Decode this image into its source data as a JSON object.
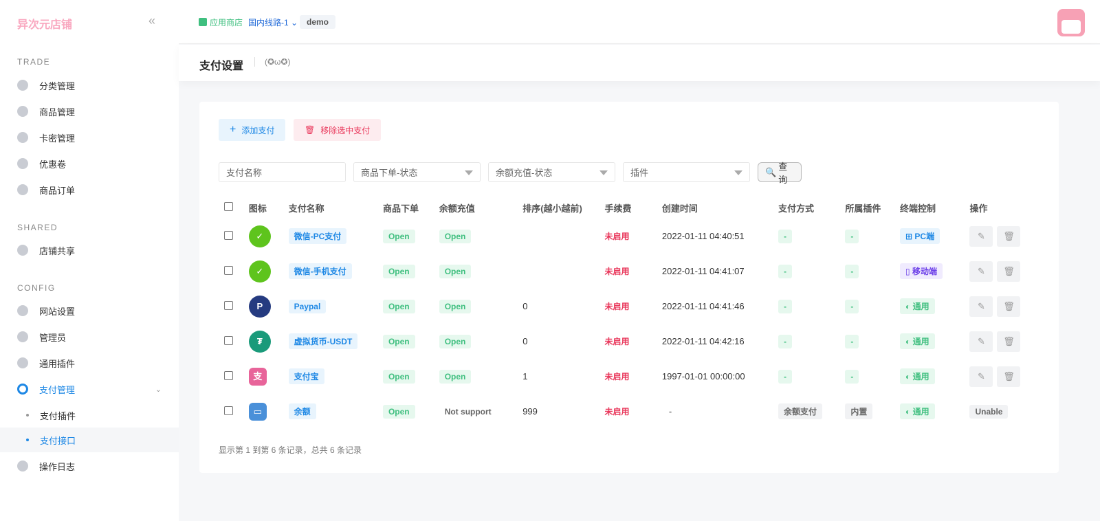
{
  "sidebar": {
    "logo": "异次元店铺",
    "sections": {
      "trade": "TRADE",
      "shared": "SHARED",
      "config": "CONFIG"
    },
    "items": [
      "分类管理",
      "商品管理",
      "卡密管理",
      "优惠卷",
      "商品订单",
      "店铺共享",
      "网站设置",
      "管理员",
      "通用插件",
      "支付管理",
      "支付插件",
      "支付接口",
      "操作日志"
    ]
  },
  "topbar": {
    "store": "应用商店",
    "line": "国内线路-1",
    "user": "demo"
  },
  "page": {
    "title": "支付设置",
    "subtitle": "(✪ω✪)"
  },
  "toolbar": {
    "add": "添加支付",
    "remove": "移除选中支付"
  },
  "filters": {
    "name": "支付名称",
    "order_status": "商品下单-状态",
    "recharge_status": "余额充值-状态",
    "plugin": "插件",
    "search": "查询"
  },
  "table": {
    "headers": [
      "图标",
      "支付名称",
      "商品下单",
      "余额充值",
      "排序(越小越前)",
      "手续费",
      "创建时间",
      "支付方式",
      "所属插件",
      "终端控制",
      "操作"
    ],
    "rows": [
      {
        "icon": "wechat-icon",
        "color": "#5ec41d",
        "name": "微信-PC支付",
        "order": "Open",
        "recharge": "Open",
        "sort": "",
        "fee": "未启用",
        "created": "2022-01-11 04:40:51",
        "method": "-",
        "plugin": "-",
        "terminal": "PC端",
        "terminal_type": "pc"
      },
      {
        "icon": "wechat-icon",
        "color": "#5ec41d",
        "name": "微信-手机支付",
        "order": "Open",
        "recharge": "Open",
        "sort": "",
        "fee": "未启用",
        "created": "2022-01-11 04:41:07",
        "method": "-",
        "plugin": "-",
        "terminal": "移动端",
        "terminal_type": "mobile"
      },
      {
        "icon": "paypal-icon",
        "color": "#253b80",
        "name": "Paypal",
        "order": "Open",
        "recharge": "Open",
        "sort": "0",
        "fee": "未启用",
        "created": "2022-01-11 04:41:46",
        "method": "-",
        "plugin": "-",
        "terminal": "通用",
        "terminal_type": "all"
      },
      {
        "icon": "tether-icon",
        "color": "#1a9a7a",
        "name": "虚拟货币-USDT",
        "order": "Open",
        "recharge": "Open",
        "sort": "0",
        "fee": "未启用",
        "created": "2022-01-11 04:42:16",
        "method": "-",
        "plugin": "-",
        "terminal": "通用",
        "terminal_type": "all"
      },
      {
        "icon": "alipay-icon",
        "color": "#e8649a",
        "name": "支付宝",
        "order": "Open",
        "recharge": "Open",
        "sort": "1",
        "fee": "未启用",
        "created": "1997-01-01 00:00:00",
        "method": "-",
        "plugin": "-",
        "terminal": "通用",
        "terminal_type": "all"
      },
      {
        "icon": "wallet-icon",
        "color": "#4a90d9",
        "name": "余额",
        "order": "Open",
        "recharge": "Not support",
        "sort": "999",
        "fee": "未启用",
        "created": "-",
        "method": "余额支付",
        "plugin": "内置",
        "terminal": "通用",
        "terminal_type": "all",
        "action": "Unable"
      }
    ]
  },
  "footer": "显示第 1 到第 6 条记录，总共 6 条记录"
}
